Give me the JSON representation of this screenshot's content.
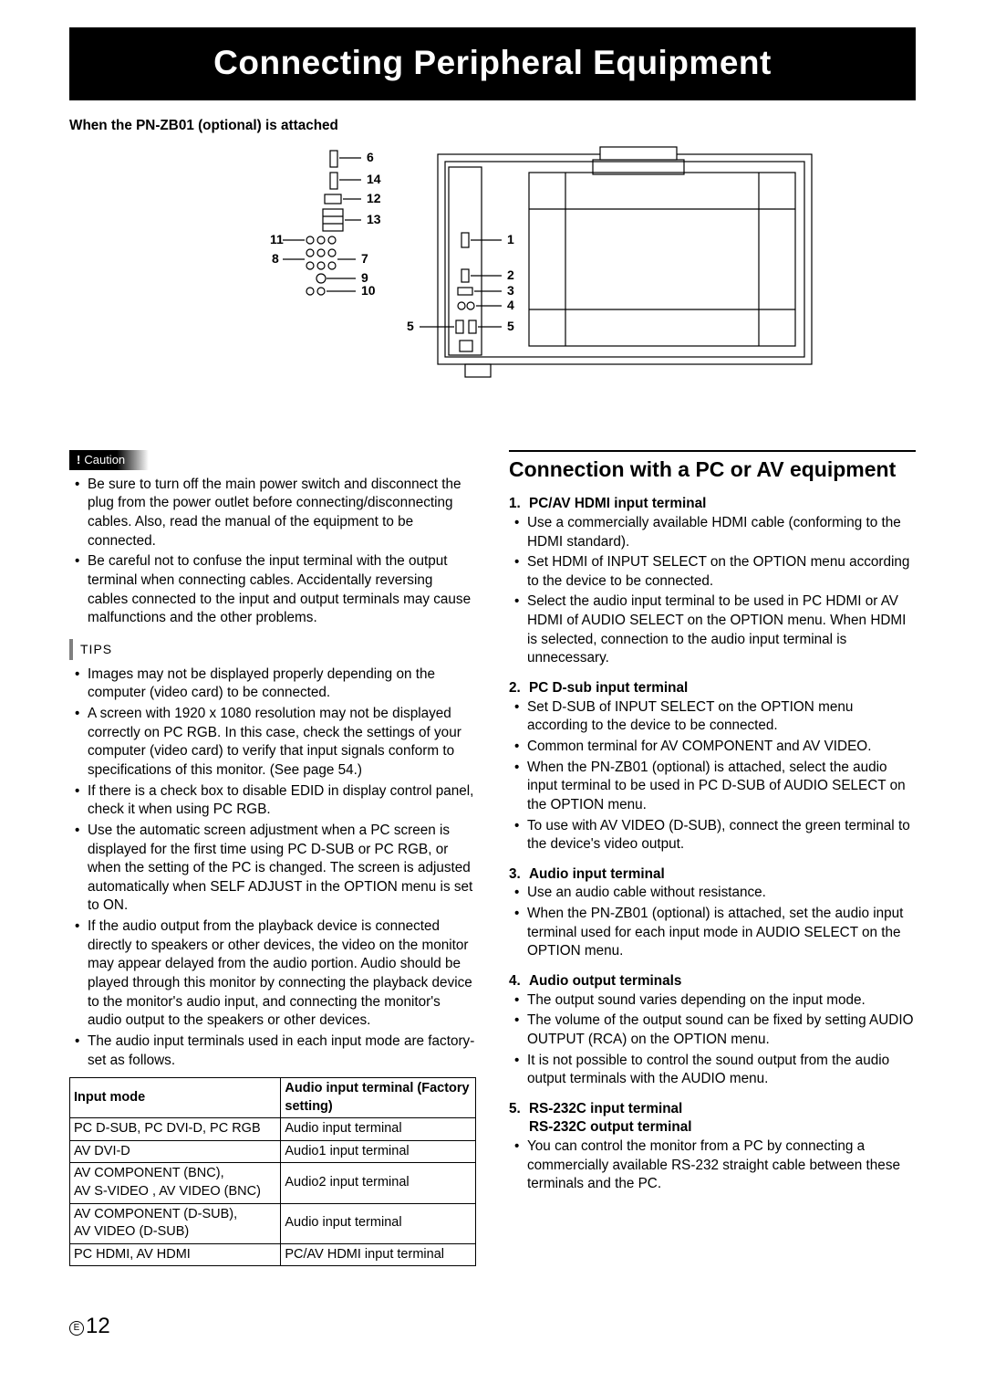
{
  "banner": "Connecting Peripheral Equipment",
  "subhead": "When the PN-ZB01 (optional) is attached",
  "diagram": {
    "labels": [
      "1",
      "2",
      "3",
      "4",
      "5",
      "6",
      "7",
      "8",
      "9",
      "10",
      "11",
      "12",
      "13",
      "14"
    ],
    "stroke": "#000000",
    "fill": "#ffffff",
    "font_size": 13
  },
  "caution": {
    "label": "Caution",
    "items": [
      "Be sure to turn off the main power switch and disconnect the plug from the power outlet before connecting/disconnecting cables. Also, read the manual of the equipment to be connected.",
      "Be careful not to confuse the input terminal with the output terminal when connecting cables. Accidentally reversing cables connected to the input and output terminals may cause malfunctions and the other problems."
    ]
  },
  "tips": {
    "label": "TIPS",
    "items": [
      "Images may not be displayed properly depending on the computer (video card) to be connected.",
      "A screen with 1920 x 1080 resolution may not be displayed correctly on PC RGB. In this case, check the settings of your computer (video card) to verify that input signals conform to specifications of this monitor. (See page 54.)",
      "If there is a check box to disable EDID in display control panel, check it when using PC RGB.",
      "Use the automatic screen adjustment when a PC screen is displayed for the first time using PC D-SUB or PC RGB, or when the setting of the PC is changed. The screen is adjusted automatically when SELF ADJUST in the OPTION menu is set to ON.",
      "If the audio output from the playback device is connected directly to speakers or other devices, the video on the monitor may appear delayed from the audio portion. Audio should be played through this monitor by connecting the playback device to the monitor's audio input, and connecting the monitor's audio output to the speakers or other devices.",
      "The audio input terminals used in each input mode are factory-set as follows."
    ]
  },
  "table": {
    "columns": [
      "Input mode",
      "Audio input terminal (Factory setting)"
    ],
    "rows": [
      [
        "PC D-SUB, PC DVI-D, PC RGB",
        "Audio input terminal"
      ],
      [
        "AV DVI-D",
        "Audio1 input terminal"
      ],
      [
        "AV COMPONENT (BNC),\nAV S-VIDEO , AV VIDEO (BNC)",
        "Audio2 input terminal"
      ],
      [
        "AV COMPONENT (D-SUB),\nAV VIDEO (D-SUB)",
        "Audio input terminal"
      ],
      [
        "PC HDMI, AV HDMI",
        "PC/AV HDMI input terminal"
      ]
    ],
    "col_widths": [
      "52%",
      "48%"
    ]
  },
  "right": {
    "title": "Connection with a PC or AV equipment",
    "sections": [
      {
        "n": "1.",
        "head": "PC/AV HDMI input terminal",
        "items": [
          "Use a commercially available HDMI cable (conforming to the HDMI standard).",
          "Set HDMI of INPUT SELECT on the OPTION menu according to the device to be connected.",
          "Select the audio input terminal to be used in PC HDMI or AV HDMI of AUDIO SELECT on the OPTION menu. When HDMI is selected, connection to the audio input terminal is unnecessary."
        ]
      },
      {
        "n": "2.",
        "head": "PC D-sub input terminal",
        "items": [
          "Set D-SUB of INPUT SELECT on the OPTION menu according to the device to be connected.",
          "Common terminal for AV COMPONENT and AV VIDEO.",
          "When the PN-ZB01 (optional) is attached, select the audio input terminal to be used in PC D-SUB of AUDIO SELECT on the OPTION menu.",
          "To use with AV VIDEO (D-SUB), connect the green terminal to the device's video output."
        ]
      },
      {
        "n": "3.",
        "head": "Audio input terminal",
        "items": [
          "Use an audio cable without resistance.",
          "When the PN-ZB01 (optional) is attached, set the audio input terminal used for each input mode in AUDIO SELECT on the OPTION menu."
        ]
      },
      {
        "n": "4.",
        "head": "Audio output terminals",
        "items": [
          "The output sound varies depending on the input mode.",
          "The volume of the output sound can be fixed by setting AUDIO OUTPUT (RCA) on the OPTION menu.",
          "It is not possible to control the sound output from the audio output terminals with the AUDIO menu."
        ]
      },
      {
        "n": "5.",
        "head": "RS-232C input terminal",
        "head2": "RS-232C output terminal",
        "items": [
          "You can control the monitor from a PC by connecting a commercially available RS-232 straight cable between these terminals and the PC."
        ]
      }
    ]
  },
  "page": {
    "lang_mark": "E",
    "number": "12"
  }
}
